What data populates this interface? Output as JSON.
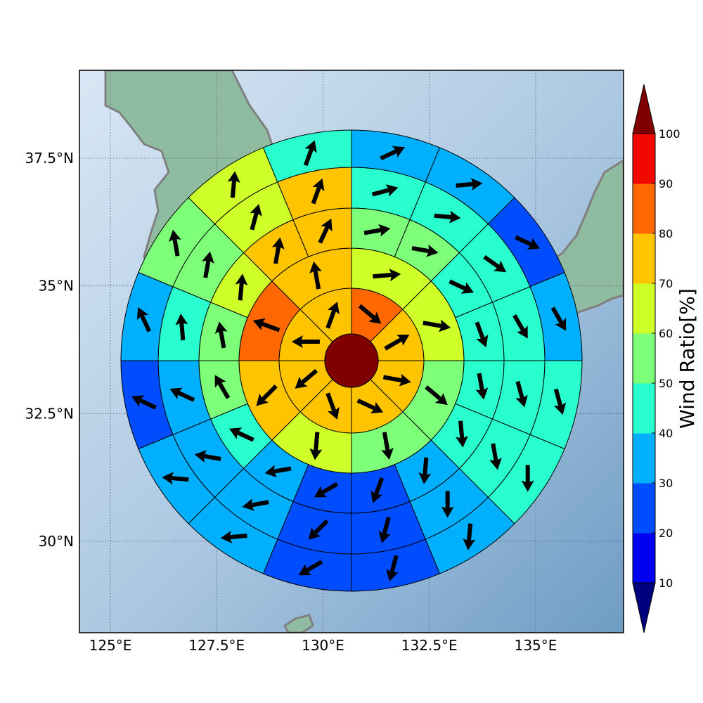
{
  "map": {
    "lon_ticks": [
      {
        "value": 125,
        "label": "125°E"
      },
      {
        "value": 127.5,
        "label": "127.5°E"
      },
      {
        "value": 130,
        "label": "130°E"
      },
      {
        "value": 132.5,
        "label": "132.5°E"
      },
      {
        "value": 135,
        "label": "135°E"
      }
    ],
    "lat_ticks": [
      {
        "value": 30,
        "label": "30°N"
      },
      {
        "value": 32.5,
        "label": "32.5°N"
      },
      {
        "value": 35,
        "label": "35°N"
      },
      {
        "value": 37.5,
        "label": "37.5°N"
      }
    ],
    "colors": {
      "coastline": "#808080",
      "sea_light": "#d6e6f4",
      "sea_dark": "#7aa5cb",
      "land": "#8fbba0",
      "gridline": "#4a5a7a",
      "ring_stroke": "#000000",
      "arrow": "#000000"
    }
  },
  "colorbar": {
    "title": "Wind Ratio[%]",
    "ticks": [
      "10",
      "20",
      "30",
      "40",
      "50",
      "60",
      "70",
      "80",
      "90",
      "100"
    ],
    "under_color": "#00007f",
    "over_color": "#7f0000",
    "band_colors": [
      "#0000f1",
      "#004cff",
      "#00b0ff",
      "#29ffce",
      "#7dff7a",
      "#ceff29",
      "#ffc400",
      "#ff6800",
      "#f10800"
    ]
  },
  "polar_grid": {
    "center_value": 100,
    "rings": [
      {
        "values": [
          80,
          70,
          70,
          70,
          70,
          70,
          70,
          70
        ],
        "arrows": [
          130,
          60,
          100,
          115,
          160,
          230,
          270,
          20
        ]
      },
      {
        "values": [
          60,
          60,
          50,
          50,
          60,
          70,
          80,
          70
        ],
        "arrows": [
          85,
          100,
          130,
          170,
          185,
          225,
          290,
          350
        ]
      },
      {
        "values": [
          50,
          50,
          40,
          40,
          40,
          40,
          30,
          20,
          20,
          30,
          40,
          50,
          50,
          60,
          70,
          70
        ],
        "arrows": [
          80,
          100,
          115,
          160,
          170,
          175,
          185,
          200,
          240,
          260,
          295,
          330,
          350,
          5,
          10,
          25
        ]
      },
      {
        "values": [
          40,
          40,
          40,
          40,
          40,
          40,
          30,
          20,
          20,
          30,
          30,
          30,
          40,
          50,
          60,
          70
        ],
        "arrows": [
          75,
          95,
          125,
          150,
          165,
          170,
          180,
          195,
          225,
          260,
          280,
          295,
          355,
          10,
          15,
          20
        ]
      },
      {
        "values": [
          30,
          30,
          20,
          30,
          40,
          40,
          30,
          20,
          20,
          30,
          30,
          20,
          30,
          50,
          60,
          40
        ],
        "arrows": [
          65,
          85,
          115,
          150,
          165,
          180,
          185,
          195,
          240,
          265,
          275,
          295,
          335,
          350,
          5,
          20
        ]
      }
    ]
  }
}
